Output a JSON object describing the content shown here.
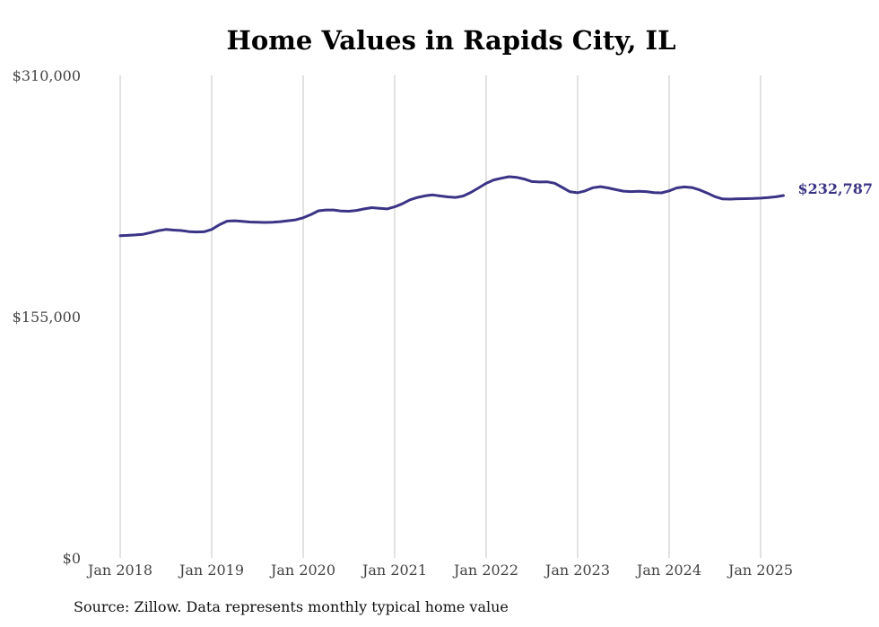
{
  "chart_data": {
    "type": "line",
    "title": "Home Values in Rapids City, IL",
    "source": "Source: Zillow. Data represents monthly typical home value",
    "ylim": [
      0,
      310000
    ],
    "y_ticks": [
      {
        "value": 0,
        "label": "$0"
      },
      {
        "value": 155000,
        "label": "$155,000"
      },
      {
        "value": 310000,
        "label": "$310,000"
      }
    ],
    "x_ticks": [
      "Jan 2018",
      "Jan 2019",
      "Jan 2020",
      "Jan 2021",
      "Jan 2022",
      "Jan 2023",
      "Jan 2024",
      "Jan 2025"
    ],
    "x_start": "Jan 2018",
    "x_end": "Apr 2025",
    "grid": {
      "vertical": true,
      "horizontal": false
    },
    "line_color": "#3b3486",
    "end_label": "$232,787",
    "series": [
      {
        "values": [
          207000,
          207200,
          207500,
          207900,
          209000,
          210200,
          211000,
          210600,
          210300,
          209600,
          209400,
          209500,
          211000,
          214000,
          216300,
          216600,
          216200,
          215800,
          215700,
          215500,
          215600,
          216000,
          216600,
          217200,
          218500,
          220500,
          223000,
          223500,
          223500,
          222800,
          222700,
          223200,
          224200,
          225000,
          224600,
          224200,
          225500,
          227500,
          230000,
          231600,
          232600,
          233200,
          232500,
          231900,
          231600,
          232500,
          234800,
          237700,
          240600,
          242800,
          243900,
          244900,
          244500,
          243400,
          241800,
          241500,
          241600,
          240700,
          238000,
          235200,
          234600,
          235800,
          237800,
          238500,
          237700,
          236600,
          235600,
          235300,
          235500,
          235300,
          234700,
          234500,
          235800,
          237700,
          238300,
          237900,
          236400,
          234400,
          232100,
          230600,
          230500,
          230700,
          230800,
          230900,
          231100,
          231500,
          232000,
          232787
        ]
      }
    ]
  }
}
